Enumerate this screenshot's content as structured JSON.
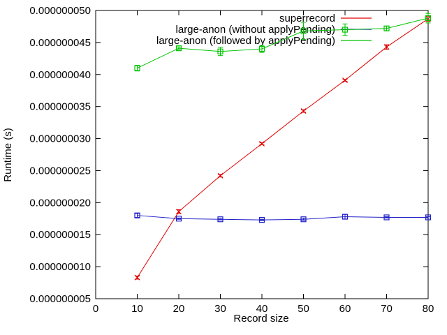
{
  "chart_data": {
    "type": "line",
    "title": "",
    "xlabel": "Record size",
    "ylabel": "Runtime (s)",
    "xlim": [
      0,
      80
    ],
    "ylim": [
      5e-09,
      5e-08
    ],
    "grid": false,
    "legend_position": "top-right-inside",
    "x_ticks": [
      0,
      10,
      20,
      30,
      40,
      50,
      60,
      70,
      80
    ],
    "y_tick_values": [
      5e-09,
      1e-08,
      1.5e-08,
      2e-08,
      2.5e-08,
      3e-08,
      3.5e-08,
      4e-08,
      4.5e-08,
      5e-08
    ],
    "y_tick_labels": [
      "0.000000005",
      "0.000000010",
      "0.000000015",
      "0.000000020",
      "0.000000025",
      "0.000000030",
      "0.000000035",
      "0.000000040",
      "0.000000045",
      "0.000000050"
    ],
    "x": [
      10,
      20,
      30,
      40,
      50,
      60,
      70,
      80
    ],
    "series": [
      {
        "name": "superrecord",
        "color": "#e00000",
        "marker": "cross",
        "values": [
          8.3e-09,
          1.86e-08,
          2.42e-08,
          2.92e-08,
          3.43e-08,
          3.91e-08,
          4.43e-08,
          4.87e-08
        ],
        "yerr": [
          2.5e-10,
          3e-10,
          2e-10,
          1.5e-10,
          2e-10,
          1.5e-10,
          3.5e-10,
          4e-10
        ]
      },
      {
        "name": "large-anon (without applyPending)",
        "color": "#2121c8",
        "marker": "square",
        "values": [
          1.8e-08,
          1.75e-08,
          1.74e-08,
          1.73e-08,
          1.74e-08,
          1.78e-08,
          1.77e-08,
          1.77e-08
        ],
        "yerr": [
          3e-10,
          1e-10,
          1e-10,
          1e-10,
          1.5e-10,
          3.5e-10,
          1e-10,
          1e-10
        ]
      },
      {
        "name": "large-anon (followed by applyPending)",
        "color": "#00c400",
        "marker": "square",
        "values": [
          4.1e-08,
          4.41e-08,
          4.36e-08,
          4.4e-08,
          4.68e-08,
          4.7e-08,
          4.72e-08,
          4.88e-08
        ],
        "yerr": [
          4.5e-10,
          2e-10,
          6.5e-10,
          5.5e-10,
          1.35e-09,
          9e-10,
          3.5e-10,
          7.5e-10
        ]
      }
    ]
  }
}
